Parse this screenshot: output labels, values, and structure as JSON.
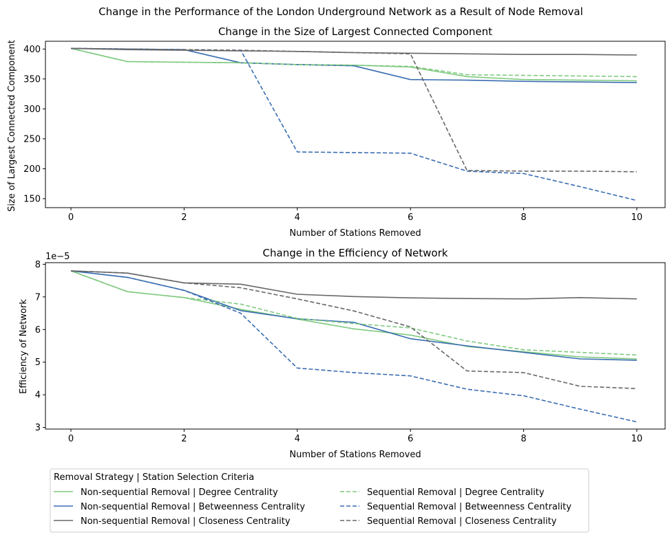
{
  "figure": {
    "suptitle": "Change in the Performance of the London Underground Network as a Result of Node Removal"
  },
  "legend": {
    "title": "Removal Strategy | Station Selection Criteria",
    "placement": "bottom-left, below plots",
    "columns": 2
  },
  "chart_data": [
    {
      "type": "line",
      "title": "Change in the Size of Largest Connected Component",
      "xlabel": "Number of Stations Removed",
      "ylabel": "Size of Largest Connected Component",
      "xlim": [
        -0.45,
        10.5
      ],
      "ylim": [
        135,
        413
      ],
      "xticks": [
        0,
        2,
        4,
        6,
        8,
        10
      ],
      "yticks": [
        150,
        200,
        250,
        300,
        350,
        400
      ],
      "tick_format": "int",
      "grid": false,
      "x": [
        0,
        1,
        2,
        3,
        4,
        5,
        6,
        7,
        8,
        9,
        10
      ],
      "series": [
        {
          "name": "Non-sequential Removal | Degree Centrality",
          "color": "#7fc97f",
          "dash": "solid",
          "values": [
            401,
            379,
            378,
            377,
            374,
            373,
            370,
            354,
            349,
            348,
            347
          ]
        },
        {
          "name": "Non-sequential Removal | Betweenness Centrality",
          "color": "#386cb0",
          "dash": "solid",
          "values": [
            401,
            400,
            399,
            377,
            374,
            372,
            349,
            348,
            346,
            345,
            344
          ]
        },
        {
          "name": "Non-sequential Removal | Closeness Centrality",
          "color": "#666666",
          "dash": "solid",
          "values": [
            401,
            399,
            398,
            397,
            396,
            394,
            393,
            392,
            391,
            391,
            390
          ]
        },
        {
          "name": "Sequential Removal | Degree Centrality",
          "color": "#7fc97f",
          "dash": "dashed",
          "values": [
            401,
            379,
            378,
            377,
            374,
            373,
            371,
            357,
            356,
            355,
            354
          ]
        },
        {
          "name": "Sequential Removal | Betweenness Centrality",
          "color": "#386cb0",
          "dash": "dashed",
          "values": [
            401,
            400,
            399,
            398,
            228,
            227,
            226,
            196,
            192,
            170,
            147
          ]
        },
        {
          "name": "Sequential Removal | Closeness Centrality",
          "color": "#666666",
          "dash": "dashed",
          "values": [
            401,
            400,
            399,
            398,
            396,
            394,
            392,
            197,
            196,
            196,
            195
          ]
        }
      ]
    },
    {
      "type": "line",
      "title": "Change in the Efficiency of Network",
      "xlabel": "Number of Stations Removed",
      "ylabel": "Efficiency of Network",
      "offset_label": "1e−5",
      "xlim": [
        -0.45,
        10.5
      ],
      "ylim": [
        2.95,
        8.05
      ],
      "xticks": [
        0,
        2,
        4,
        6,
        8,
        10
      ],
      "yticks": [
        3,
        4,
        5,
        6,
        7,
        8
      ],
      "tick_format": "int",
      "grid": false,
      "x": [
        0,
        1,
        2,
        3,
        4,
        5,
        6,
        7,
        8,
        9,
        10
      ],
      "series": [
        {
          "name": "Non-sequential Removal | Degree Centrality",
          "color": "#7fc97f",
          "dash": "solid",
          "values": [
            7.8,
            7.16,
            6.98,
            6.62,
            6.32,
            6.02,
            5.83,
            5.48,
            5.32,
            5.16,
            5.1
          ]
        },
        {
          "name": "Non-sequential Removal | Betweenness Centrality",
          "color": "#386cb0",
          "dash": "solid",
          "values": [
            7.8,
            7.6,
            7.2,
            6.58,
            6.33,
            6.22,
            5.72,
            5.5,
            5.3,
            5.1,
            5.06
          ]
        },
        {
          "name": "Non-sequential Removal | Closeness Centrality",
          "color": "#666666",
          "dash": "solid",
          "values": [
            7.8,
            7.73,
            7.43,
            7.39,
            7.08,
            7.01,
            6.97,
            6.95,
            6.94,
            6.98,
            6.94
          ]
        },
        {
          "name": "Sequential Removal | Degree Centrality",
          "color": "#7fc97f",
          "dash": "dashed",
          "values": [
            7.8,
            7.16,
            6.98,
            6.78,
            6.34,
            6.18,
            6.05,
            5.65,
            5.38,
            5.3,
            5.22
          ]
        },
        {
          "name": "Sequential Removal | Betweenness Centrality",
          "color": "#386cb0",
          "dash": "dashed",
          "values": [
            7.8,
            7.6,
            7.2,
            6.5,
            4.82,
            4.68,
            4.58,
            4.17,
            3.97,
            3.56,
            3.17
          ]
        },
        {
          "name": "Sequential Removal | Closeness Centrality",
          "color": "#666666",
          "dash": "dashed",
          "values": [
            7.8,
            7.73,
            7.43,
            7.28,
            6.94,
            6.57,
            6.08,
            4.73,
            4.68,
            4.26,
            4.19
          ]
        }
      ]
    }
  ]
}
